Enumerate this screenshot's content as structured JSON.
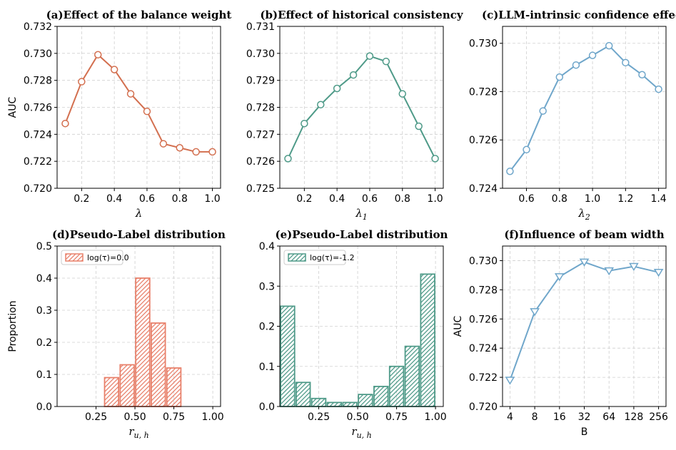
{
  "chart_data": [
    {
      "id": "a",
      "type": "line",
      "title": "(a)Effect of the balance weight",
      "xlabel": "λ",
      "ylabel": "AUC",
      "color": "#d36f4f",
      "marker": "circle",
      "x": [
        0.1,
        0.2,
        0.3,
        0.4,
        0.5,
        0.6,
        0.7,
        0.8,
        0.9,
        1.0
      ],
      "y": [
        0.7248,
        0.7279,
        0.7299,
        0.7288,
        0.727,
        0.7257,
        0.7233,
        0.723,
        0.7227,
        0.7227
      ],
      "xlim": [
        0.05,
        1.05
      ],
      "ylim": [
        0.72,
        0.732
      ],
      "xticks": [
        0.2,
        0.4,
        0.6,
        0.8,
        1.0
      ],
      "xtick_labels": [
        "0.2",
        "0.4",
        "0.6",
        "0.8",
        "1.0"
      ],
      "yticks": [
        0.72,
        0.722,
        0.724,
        0.726,
        0.728,
        0.73,
        0.732
      ],
      "ytick_labels": [
        "0.720",
        "0.722",
        "0.724",
        "0.726",
        "0.728",
        "0.730",
        "0.732"
      ],
      "grid": true
    },
    {
      "id": "b",
      "type": "line",
      "title": "(b)Effect of historical consistency",
      "xlabel": "λ",
      "xlabel_sub": "1",
      "ylabel": "",
      "color": "#4e9a88",
      "marker": "circle",
      "x": [
        0.1,
        0.2,
        0.3,
        0.4,
        0.5,
        0.6,
        0.7,
        0.8,
        0.9,
        1.0
      ],
      "y": [
        0.7261,
        0.7274,
        0.7281,
        0.7287,
        0.7292,
        0.7299,
        0.7297,
        0.7285,
        0.7273,
        0.7261
      ],
      "xlim": [
        0.05,
        1.05
      ],
      "ylim": [
        0.725,
        0.731
      ],
      "xticks": [
        0.2,
        0.4,
        0.6,
        0.8,
        1.0
      ],
      "xtick_labels": [
        "0.2",
        "0.4",
        "0.6",
        "0.8",
        "1.0"
      ],
      "yticks": [
        0.725,
        0.726,
        0.727,
        0.728,
        0.729,
        0.73,
        0.731
      ],
      "ytick_labels": [
        "0.725",
        "0.726",
        "0.727",
        "0.728",
        "0.729",
        "0.730",
        "0.731"
      ],
      "grid": true
    },
    {
      "id": "c",
      "type": "line",
      "title": "(c)LLM-intrinsic confidence effect",
      "xlabel": "λ",
      "xlabel_sub": "2",
      "ylabel": "",
      "color": "#6fa6ca",
      "marker": "circle",
      "x": [
        0.5,
        0.6,
        0.7,
        0.8,
        0.9,
        1.0,
        1.1,
        1.2,
        1.3,
        1.4
      ],
      "y": [
        0.7247,
        0.7256,
        0.7272,
        0.7286,
        0.7291,
        0.7295,
        0.7299,
        0.7292,
        0.7287,
        0.7281
      ],
      "xlim": [
        0.455,
        1.445
      ],
      "ylim": [
        0.724,
        0.7307
      ],
      "xticks": [
        0.6,
        0.8,
        1.0,
        1.2,
        1.4
      ],
      "xtick_labels": [
        "0.6",
        "0.8",
        "1.0",
        "1.2",
        "1.4"
      ],
      "yticks": [
        0.724,
        0.726,
        0.728,
        0.73
      ],
      "ytick_labels": [
        "0.724",
        "0.726",
        "0.728",
        "0.730"
      ],
      "grid": true
    },
    {
      "id": "d",
      "type": "bar",
      "title": "(d)Pseudo-Label distribution",
      "xlabel": "r",
      "xlabel_sub": "u, h",
      "ylabel": "Proportion",
      "color": "#e8806a",
      "hatch": "////",
      "legend": "log(τ)=0.0",
      "legend_position": "top-left",
      "x": [
        0.05,
        0.15,
        0.25,
        0.35,
        0.45,
        0.55,
        0.65,
        0.75,
        0.85,
        0.95
      ],
      "values": [
        0.0,
        0.0,
        0.0,
        0.09,
        0.13,
        0.4,
        0.26,
        0.12,
        0.0,
        0.0
      ],
      "bar_width": 0.09,
      "xlim": [
        0.0,
        1.05
      ],
      "ylim": [
        0.0,
        0.5
      ],
      "xticks": [
        0.25,
        0.5,
        0.75,
        1.0
      ],
      "xtick_labels": [
        "0.25",
        "0.50",
        "0.75",
        "1.00"
      ],
      "yticks": [
        0.0,
        0.1,
        0.2,
        0.3,
        0.4,
        0.5
      ],
      "ytick_labels": [
        "0.0",
        "0.1",
        "0.2",
        "0.3",
        "0.4",
        "0.5"
      ],
      "grid": true
    },
    {
      "id": "e",
      "type": "bar",
      "title": "(e)Pseudo-Label distribution",
      "xlabel": "r",
      "xlabel_sub": "u, h",
      "ylabel": "",
      "color": "#4e9a88",
      "hatch": "////",
      "legend": "log(τ)=-1.2",
      "legend_position": "top-left",
      "x": [
        0.05,
        0.15,
        0.25,
        0.35,
        0.45,
        0.55,
        0.65,
        0.75,
        0.85,
        0.95
      ],
      "values": [
        0.25,
        0.06,
        0.02,
        0.01,
        0.01,
        0.03,
        0.05,
        0.1,
        0.15,
        0.33
      ],
      "bar_width": 0.09,
      "xlim": [
        0.0,
        1.05
      ],
      "ylim": [
        0.0,
        0.4
      ],
      "xticks": [
        0.25,
        0.5,
        0.75,
        1.0
      ],
      "xtick_labels": [
        "0.25",
        "0.50",
        "0.75",
        "1.00"
      ],
      "yticks": [
        0.0,
        0.1,
        0.2,
        0.3,
        0.4
      ],
      "ytick_labels": [
        "0.0",
        "0.1",
        "0.2",
        "0.3",
        "0.4"
      ],
      "grid": true
    },
    {
      "id": "f",
      "type": "line",
      "title": "(f)Influence of beam width",
      "xlabel": "B",
      "ylabel": "AUC",
      "color": "#6fa6ca",
      "marker": "triangle-down",
      "x": [
        0,
        1,
        2,
        3,
        4,
        5,
        6
      ],
      "categories": [
        "4",
        "8",
        "16",
        "32",
        "64",
        "128",
        "256"
      ],
      "y": [
        0.7218,
        0.7265,
        0.7289,
        0.7299,
        0.7293,
        0.7296,
        0.7292
      ],
      "xlim": [
        -0.3,
        6.3
      ],
      "ylim": [
        0.72,
        0.731
      ],
      "xticks": [
        0,
        1,
        2,
        3,
        4,
        5,
        6
      ],
      "xtick_labels": [
        "4",
        "8",
        "16",
        "32",
        "64",
        "128",
        "256"
      ],
      "yticks": [
        0.72,
        0.722,
        0.724,
        0.726,
        0.728,
        0.73
      ],
      "ytick_labels": [
        "0.720",
        "0.722",
        "0.724",
        "0.726",
        "0.728",
        "0.730"
      ],
      "grid": true
    }
  ]
}
